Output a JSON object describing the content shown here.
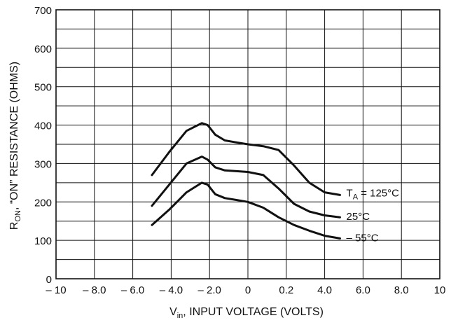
{
  "chart_data": {
    "type": "line",
    "title": "",
    "xlabel": {
      "main": "V",
      "sub": "in",
      "rest": ", INPUT VOLTAGE (VOLTS)"
    },
    "ylabel": {
      "main": "R",
      "sub": "ON",
      "rest": ", “ON” RESISTANCE (OHMS)"
    },
    "x_tick_labels": [
      "– 10",
      "– 8.0",
      "– 6.0",
      "– 4.0",
      "– 2.0",
      "0",
      "0.2",
      "4.0",
      "6.0",
      "8.0",
      "10"
    ],
    "y_tick_labels": [
      "0",
      "100",
      "200",
      "300",
      "400",
      "500",
      "600",
      "700"
    ],
    "ylim": [
      0,
      700
    ],
    "grid": true,
    "grid_divisions": {
      "x": 10,
      "y": 14
    },
    "series": [
      {
        "name": {
          "main": "T",
          "sub": "A",
          "rest": " = 125°C"
        },
        "color": "#111111",
        "x": [
          2.5,
          2.95,
          3.4,
          3.8,
          3.95,
          4.15,
          4.4,
          4.7,
          5.0,
          5.4,
          5.8,
          6.2,
          6.6,
          7.0,
          7.4
        ],
        "y": [
          270,
          330,
          385,
          405,
          400,
          375,
          360,
          355,
          350,
          345,
          335,
          295,
          250,
          225,
          218
        ]
      },
      {
        "name": {
          "main": "",
          "sub": "",
          "rest": "25°C"
        },
        "color": "#111111",
        "x": [
          2.5,
          2.95,
          3.4,
          3.8,
          3.95,
          4.15,
          4.4,
          4.7,
          5.0,
          5.4,
          5.8,
          6.2,
          6.6,
          7.0,
          7.4
        ],
        "y": [
          190,
          245,
          300,
          318,
          310,
          290,
          282,
          280,
          278,
          270,
          235,
          195,
          175,
          165,
          160
        ]
      },
      {
        "name": {
          "main": "",
          "sub": "",
          "rest": "– 55°C"
        },
        "color": "#111111",
        "x": [
          2.5,
          2.95,
          3.4,
          3.8,
          3.95,
          4.15,
          4.4,
          4.7,
          5.0,
          5.4,
          5.8,
          6.2,
          6.6,
          7.0,
          7.4
        ],
        "y": [
          140,
          180,
          225,
          250,
          245,
          220,
          210,
          205,
          200,
          185,
          160,
          140,
          125,
          112,
          105
        ]
      }
    ]
  }
}
